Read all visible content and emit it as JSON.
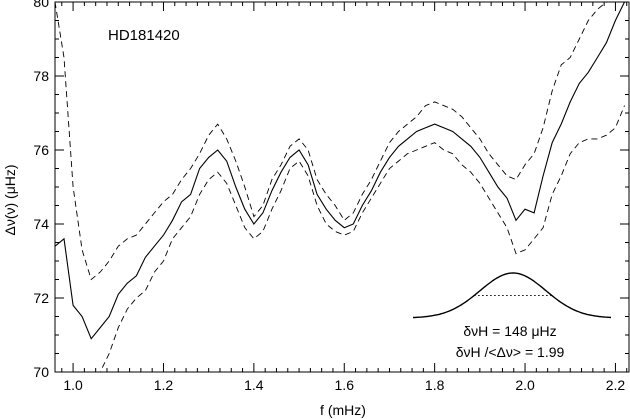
{
  "chart_data": {
    "type": "line",
    "annotation_star": "HD181420",
    "xlabel": "f (mHz)",
    "ylabel": "Δν(ν) (μHz)",
    "xlim": [
      0.96,
      2.23
    ],
    "ylim": [
      70,
      80
    ],
    "x_ticks": [
      "1.0",
      "1.2",
      "1.4",
      "1.6",
      "1.8",
      "2.0",
      "2.2"
    ],
    "y_ticks": [
      "70",
      "72",
      "74",
      "76",
      "78",
      "80"
    ],
    "grid": false,
    "series": [
      {
        "style": "solid",
        "x": [
          0.96,
          0.98,
          1.0,
          1.02,
          1.04,
          1.06,
          1.08,
          1.1,
          1.12,
          1.14,
          1.16,
          1.18,
          1.2,
          1.22,
          1.24,
          1.26,
          1.28,
          1.3,
          1.32,
          1.34,
          1.36,
          1.38,
          1.4,
          1.42,
          1.44,
          1.46,
          1.48,
          1.5,
          1.52,
          1.54,
          1.56,
          1.58,
          1.6,
          1.62,
          1.64,
          1.66,
          1.68,
          1.7,
          1.72,
          1.74,
          1.76,
          1.78,
          1.8,
          1.82,
          1.84,
          1.86,
          1.88,
          1.9,
          1.92,
          1.94,
          1.96,
          1.98,
          2.0,
          2.02,
          2.04,
          2.06,
          2.08,
          2.1,
          2.12,
          2.14,
          2.16,
          2.18,
          2.2,
          2.22
        ],
        "y": [
          73.4,
          73.6,
          71.8,
          71.5,
          70.9,
          71.2,
          71.5,
          72.1,
          72.4,
          72.6,
          73.1,
          73.4,
          73.7,
          74.1,
          74.6,
          74.8,
          75.5,
          75.8,
          76.0,
          75.7,
          75.0,
          74.4,
          74.0,
          74.3,
          74.9,
          75.4,
          75.8,
          76.0,
          75.6,
          74.8,
          74.4,
          74.1,
          73.9,
          74.0,
          74.5,
          74.9,
          75.4,
          75.8,
          76.1,
          76.3,
          76.5,
          76.6,
          76.7,
          76.6,
          76.5,
          76.3,
          76.1,
          75.8,
          75.4,
          75.0,
          74.7,
          74.1,
          74.4,
          74.3,
          75.3,
          76.2,
          76.7,
          77.3,
          77.8,
          78.1,
          78.5,
          78.9,
          79.5,
          80.0
        ]
      },
      {
        "style": "dashed",
        "x": [
          0.96,
          0.98,
          1.0,
          1.02,
          1.04,
          1.06,
          1.08,
          1.1,
          1.12,
          1.14,
          1.16,
          1.18,
          1.2,
          1.22,
          1.24,
          1.26,
          1.28,
          1.3,
          1.32,
          1.34,
          1.36,
          1.38,
          1.4,
          1.42,
          1.44,
          1.46,
          1.48,
          1.5,
          1.52,
          1.54,
          1.56,
          1.58,
          1.6,
          1.62,
          1.64,
          1.66,
          1.68,
          1.7,
          1.72,
          1.74,
          1.76,
          1.78,
          1.8,
          1.82,
          1.84,
          1.86,
          1.88,
          1.9,
          1.92,
          1.94,
          1.96,
          1.98,
          2.0,
          2.02,
          2.04,
          2.06,
          2.08,
          2.1,
          2.12,
          2.14,
          2.16,
          2.18,
          2.2,
          2.22
        ],
        "y": [
          80.0,
          78.5,
          75.0,
          73.3,
          72.5,
          72.7,
          73.0,
          73.4,
          73.6,
          73.7,
          74.0,
          74.3,
          74.6,
          74.8,
          75.2,
          75.5,
          75.9,
          76.4,
          76.7,
          76.3,
          75.7,
          75.0,
          74.2,
          74.5,
          75.2,
          75.6,
          76.1,
          76.3,
          76.0,
          75.2,
          74.8,
          74.5,
          74.1,
          74.3,
          74.8,
          75.2,
          75.7,
          76.2,
          76.5,
          76.7,
          76.9,
          77.2,
          77.3,
          77.2,
          77.1,
          76.9,
          76.6,
          76.3,
          75.9,
          75.6,
          75.3,
          75.2,
          75.6,
          75.9,
          76.6,
          77.6,
          78.3,
          78.5,
          79.0,
          79.5,
          79.8,
          80.0,
          80.0,
          80.0
        ]
      },
      {
        "style": "dashed",
        "x": [
          0.96,
          0.98,
          1.0,
          1.02,
          1.04,
          1.06,
          1.08,
          1.1,
          1.12,
          1.14,
          1.16,
          1.18,
          1.2,
          1.22,
          1.24,
          1.26,
          1.28,
          1.3,
          1.32,
          1.34,
          1.36,
          1.38,
          1.4,
          1.42,
          1.44,
          1.46,
          1.48,
          1.5,
          1.52,
          1.54,
          1.56,
          1.58,
          1.6,
          1.62,
          1.64,
          1.66,
          1.68,
          1.7,
          1.72,
          1.74,
          1.76,
          1.78,
          1.8,
          1.82,
          1.84,
          1.86,
          1.88,
          1.9,
          1.92,
          1.94,
          1.96,
          1.98,
          2.0,
          2.02,
          2.04,
          2.06,
          2.08,
          2.1,
          2.12,
          2.14,
          2.16,
          2.18,
          2.2,
          2.22
        ],
        "y": [
          70.0,
          70.0,
          70.0,
          70.0,
          70.0,
          70.0,
          70.5,
          71.2,
          71.7,
          72.0,
          72.2,
          72.7,
          73.0,
          73.6,
          73.9,
          74.2,
          74.8,
          75.2,
          75.4,
          75.1,
          74.5,
          73.9,
          73.6,
          73.8,
          74.4,
          74.9,
          75.5,
          75.7,
          75.3,
          74.5,
          74.0,
          73.8,
          73.7,
          73.8,
          74.3,
          74.7,
          75.1,
          75.5,
          75.7,
          75.9,
          76.0,
          76.1,
          76.2,
          76.0,
          75.9,
          75.6,
          75.4,
          75.1,
          74.7,
          74.3,
          73.9,
          73.2,
          73.3,
          73.6,
          73.9,
          74.8,
          75.3,
          75.9,
          76.2,
          76.3,
          76.3,
          76.4,
          76.6,
          77.2
        ]
      }
    ],
    "inset": {
      "line1": "δνH = 148 μHz",
      "line2": "δνH /<Δν> = 1.99"
    }
  }
}
